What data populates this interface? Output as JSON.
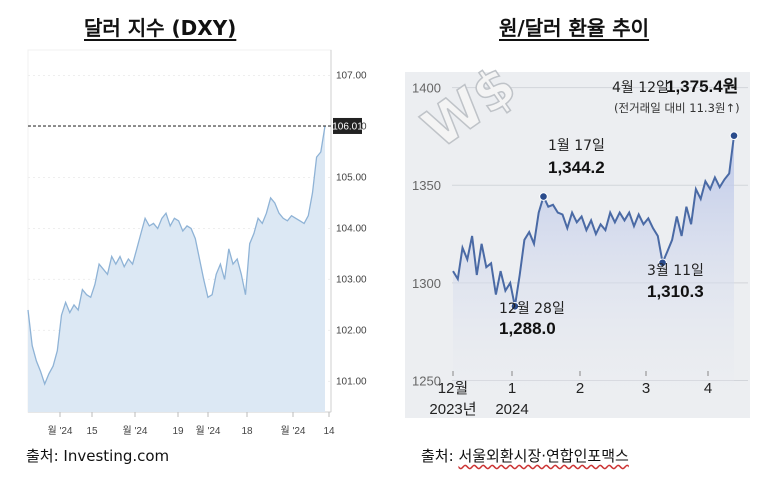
{
  "left": {
    "title": "달러 지수 (DXY)",
    "source": "출처:  Investing.com"
  },
  "right": {
    "title": "원/달러 환율 추이",
    "source_prefix": "출처: ",
    "source_name": "서울외환시장·연합인포맥스"
  },
  "chart_data": [
    {
      "type": "area",
      "title": "달러 지수 (DXY)",
      "ylim": [
        100.4,
        107.5
      ],
      "yticks": [
        "107.00",
        "106.00",
        "105.00",
        "104.00",
        "103.00",
        "102.00",
        "101.00"
      ],
      "xticks": [
        "월 '24",
        "15",
        "월 '24",
        "19",
        "월 '24",
        "18",
        "월 '24",
        "14"
      ],
      "current_label": "106.01",
      "current_value": 106.01,
      "y": [
        102.4,
        101.7,
        101.4,
        101.2,
        100.95,
        101.15,
        101.3,
        101.6,
        102.3,
        102.55,
        102.35,
        102.5,
        102.4,
        102.8,
        102.7,
        102.65,
        102.9,
        103.3,
        103.2,
        103.1,
        103.45,
        103.3,
        103.45,
        103.25,
        103.4,
        103.3,
        103.6,
        103.9,
        104.2,
        104.05,
        104.1,
        104.0,
        104.2,
        104.3,
        104.05,
        104.2,
        104.15,
        103.95,
        104.05,
        104.0,
        103.8,
        103.4,
        103.0,
        102.65,
        102.7,
        103.1,
        103.3,
        103.0,
        103.6,
        103.3,
        103.4,
        103.1,
        102.7,
        103.7,
        103.9,
        104.2,
        104.1,
        104.3,
        104.6,
        104.5,
        104.3,
        104.2,
        104.15,
        104.25,
        104.2,
        104.15,
        104.1,
        104.25,
        104.7,
        105.4,
        105.5,
        106.01
      ]
    },
    {
      "type": "line",
      "title": "원/달러 환율 추이",
      "ylim": [
        1240,
        1408
      ],
      "yticks": [
        1400,
        1350,
        1300,
        1250
      ],
      "xticks": [
        "12월",
        "1",
        "2",
        "3",
        "4"
      ],
      "xticks_sub": [
        "2023년",
        "2024"
      ],
      "y": [
        1306,
        1302,
        1318,
        1312,
        1324,
        1304,
        1320,
        1308,
        1310,
        1294,
        1306,
        1296,
        1300,
        1288.0,
        1304,
        1322,
        1326,
        1320,
        1336,
        1344.2,
        1339,
        1340,
        1336,
        1335,
        1328,
        1336,
        1331,
        1334,
        1327,
        1332,
        1325,
        1330,
        1327,
        1336,
        1331,
        1336,
        1332,
        1336,
        1329,
        1335,
        1330,
        1333,
        1328,
        1324,
        1310.3,
        1316,
        1322,
        1334,
        1324,
        1339,
        1330,
        1348,
        1343,
        1352,
        1348,
        1354,
        1349,
        1353,
        1356,
        1375.4
      ],
      "annotations": [
        {
          "date": "12월 28일",
          "value": "1,288.0"
        },
        {
          "date": "1월 17일",
          "value": "1,344.2"
        },
        {
          "date": "3월 11일",
          "value": "1,310.3"
        },
        {
          "date": "4월 12일",
          "value": "1,375.4원",
          "note": "(전거래일 대비 11.3원↑)"
        }
      ]
    }
  ],
  "colors": {
    "dxy_line": "#8fb3d6",
    "dxy_fill": "#dce8f4",
    "krw_line": "#4a6aa5",
    "krw_point": "#2b4c8c",
    "krw_bg": "#eceef1"
  }
}
